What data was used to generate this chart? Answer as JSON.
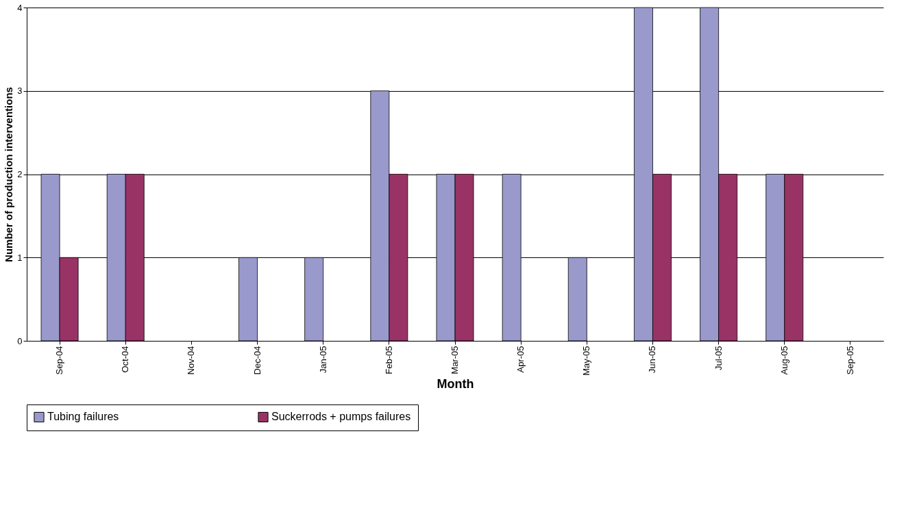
{
  "chart_data": {
    "type": "bar",
    "xlabel": "Month",
    "ylabel": "Number of production interventions",
    "categories": [
      "Sep-04",
      "Oct-04",
      "Nov-04",
      "Dec-04",
      "Jan-05",
      "Feb-05",
      "Mar-05",
      "Apr-05",
      "May-05",
      "Jun-05",
      "Jul-05",
      "Aug-05",
      "Sep-05"
    ],
    "series": [
      {
        "name": "Tubing failures",
        "color": "#9999cc",
        "values": [
          2,
          2,
          0,
          1,
          1,
          3,
          2,
          2,
          1,
          4,
          4,
          2,
          0
        ]
      },
      {
        "name": "Suckerrods + pumps failures",
        "color": "#993366",
        "values": [
          1,
          2,
          0,
          0,
          0,
          2,
          2,
          0,
          0,
          2,
          2,
          2,
          0
        ]
      }
    ],
    "ylim": [
      0,
      4
    ],
    "yticks": [
      0,
      1,
      2,
      3,
      4
    ],
    "grid": "y",
    "legend": "bottom"
  }
}
